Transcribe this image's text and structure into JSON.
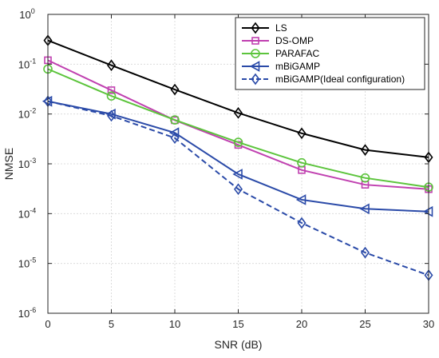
{
  "chart_data": {
    "type": "line",
    "xlabel": "SNR (dB)",
    "ylabel": "NMSE",
    "x": [
      0,
      5,
      10,
      15,
      20,
      25,
      30
    ],
    "xlim": [
      0,
      30
    ],
    "ylim": [
      1e-06,
      1
    ],
    "yscale": "log",
    "grid": true,
    "legend_position": "top-right",
    "x_ticks": [
      "0",
      "5",
      "10",
      "15",
      "20",
      "25",
      "30"
    ],
    "y_ticks": [
      {
        "base": "10",
        "exp": "0"
      },
      {
        "base": "10",
        "exp": "-1"
      },
      {
        "base": "10",
        "exp": "-2"
      },
      {
        "base": "10",
        "exp": "-3"
      },
      {
        "base": "10",
        "exp": "-4"
      },
      {
        "base": "10",
        "exp": "-5"
      },
      {
        "base": "10",
        "exp": "-6"
      }
    ],
    "series": [
      {
        "name": "LS",
        "color": "#000000",
        "marker": "diamond",
        "dash": false,
        "values": [
          0.3,
          0.095,
          0.031,
          0.0105,
          0.0041,
          0.0019,
          0.00135
        ]
      },
      {
        "name": "DS-OMP",
        "color": "#c040b0",
        "marker": "square",
        "dash": false,
        "values": [
          0.12,
          0.03,
          0.0075,
          0.0024,
          0.00075,
          0.00038,
          0.00031
        ]
      },
      {
        "name": "PARAFAC",
        "color": "#5cc43c",
        "marker": "circle",
        "dash": false,
        "values": [
          0.08,
          0.023,
          0.0076,
          0.0027,
          0.00105,
          0.00052,
          0.00034
        ]
      },
      {
        "name": "mBiGAMP",
        "color": "#2a4aa8",
        "marker": "triangle-left",
        "dash": false,
        "values": [
          0.018,
          0.01,
          0.0042,
          0.00062,
          0.00019,
          0.000125,
          0.00011
        ]
      },
      {
        "name": "mBiGAMP(Ideal configuration)",
        "color": "#2a4aa8",
        "marker": "diamond",
        "dash": true,
        "values": [
          0.018,
          0.0092,
          0.0033,
          0.00031,
          6.5e-05,
          1.65e-05,
          5.8e-06
        ]
      }
    ]
  }
}
